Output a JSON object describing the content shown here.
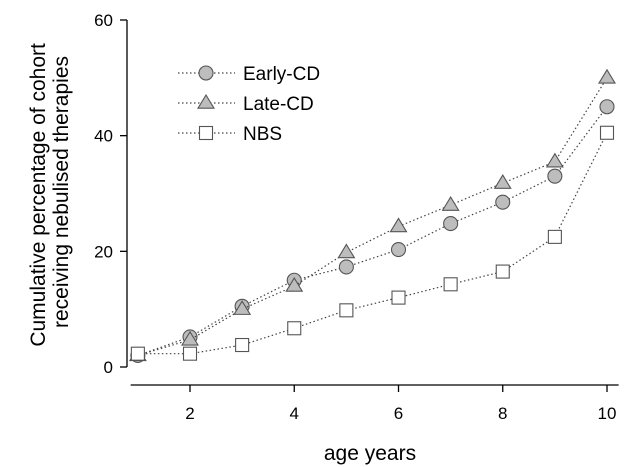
{
  "chart_data": {
    "type": "line",
    "xlabel": "age years",
    "ylabel_lines": [
      "Cumulative percentage of cohort",
      "receiving nebulised therapies"
    ],
    "xlim": [
      0.9,
      10.3
    ],
    "ylim": [
      0,
      60
    ],
    "x_ticks": [
      2,
      4,
      6,
      8,
      10
    ],
    "y_ticks": [
      0,
      20,
      40,
      60
    ],
    "x_tick_labels": [
      "2",
      "4",
      "6",
      "8",
      "10"
    ],
    "y_tick_labels": [
      "0",
      "20",
      "40",
      "60"
    ],
    "grid": false,
    "legend_position": "top-left",
    "line_style": "dotted",
    "x": [
      1,
      2,
      3,
      4,
      5,
      6,
      7,
      8,
      9,
      10
    ],
    "series": [
      {
        "name": "Early-CD",
        "marker": "circle",
        "fill": "#bdbdbd",
        "values": [
          2.0,
          5.2,
          10.5,
          15.0,
          17.3,
          20.3,
          24.8,
          28.5,
          33.0,
          45.0
        ]
      },
      {
        "name": "Late-CD",
        "marker": "triangle",
        "fill": "#bdbdbd",
        "values": [
          2.0,
          4.7,
          10.0,
          14.0,
          19.8,
          24.3,
          28.0,
          31.8,
          35.5,
          50.0
        ]
      },
      {
        "name": "NBS",
        "marker": "square",
        "fill": "#ffffff",
        "values": [
          2.3,
          2.3,
          3.8,
          6.7,
          9.8,
          12.0,
          14.3,
          16.5,
          22.5,
          40.5
        ]
      }
    ]
  }
}
